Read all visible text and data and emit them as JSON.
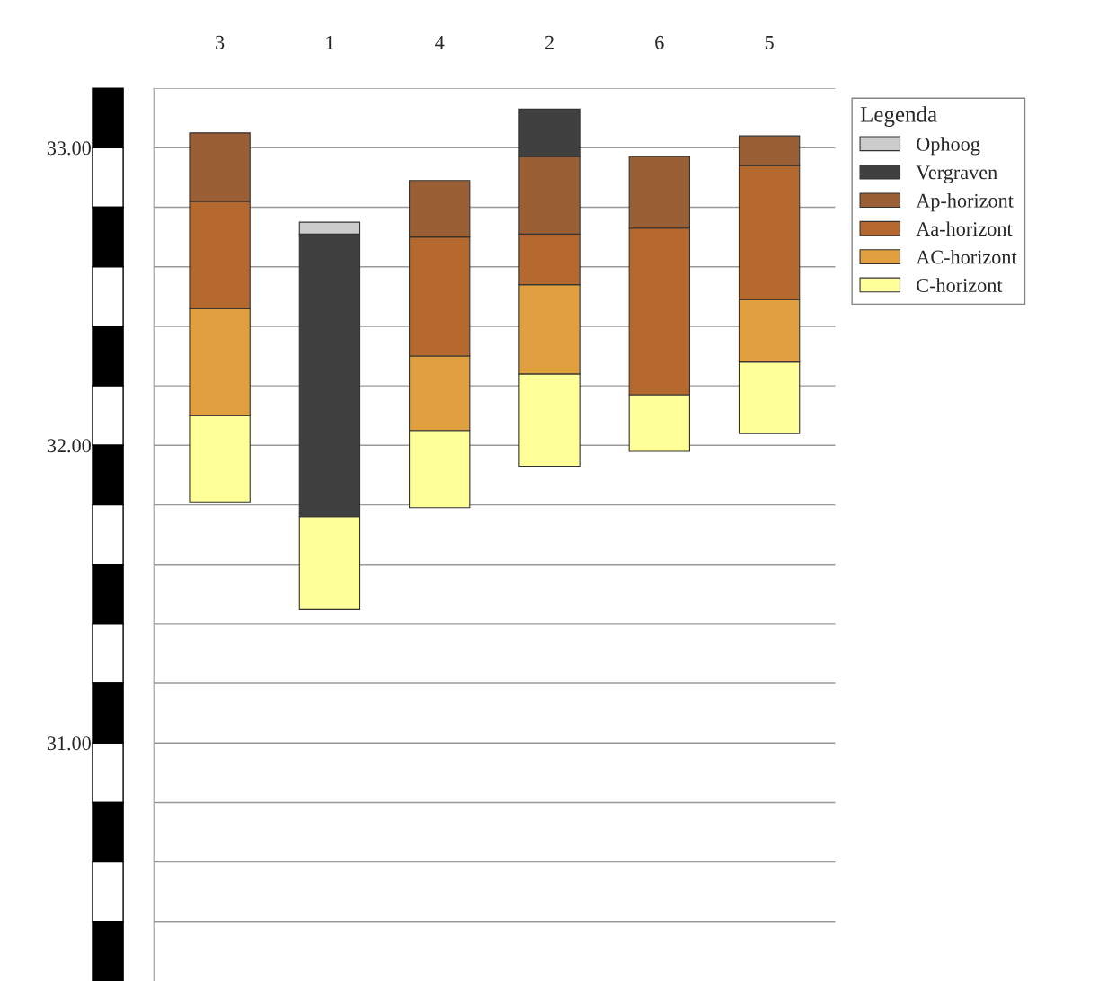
{
  "chart_data": {
    "type": "bar",
    "categories": [
      "3",
      "1",
      "4",
      "2",
      "6",
      "5"
    ],
    "series": [
      {
        "name": "C-horizont",
        "color": "#ffff99",
        "base": [
          31.81,
          31.45,
          31.79,
          31.93,
          31.98,
          32.04
        ],
        "values": [
          0.29,
          0.31,
          0.26,
          0.31,
          0.19,
          0.24
        ]
      },
      {
        "name": "AC-horizont",
        "color": "#e0a040",
        "base": [
          32.1,
          null,
          32.05,
          32.24,
          null,
          32.28
        ],
        "values": [
          0.36,
          null,
          0.25,
          0.3,
          null,
          0.21
        ]
      },
      {
        "name": "Aa-horizont",
        "color": "#b5692f",
        "base": [
          32.46,
          null,
          32.3,
          32.54,
          32.17,
          32.49
        ],
        "values": [
          0.36,
          null,
          0.4,
          0.17,
          0.56,
          0.45
        ]
      },
      {
        "name": "Ap-horizont",
        "color": "#9a5f35",
        "base": [
          32.82,
          null,
          32.7,
          32.71,
          32.73,
          32.94
        ],
        "values": [
          0.23,
          null,
          0.19,
          0.26,
          0.24,
          0.1
        ]
      },
      {
        "name": "Vergraven",
        "color": "#404040",
        "base": [
          null,
          31.76,
          null,
          32.97,
          null,
          null
        ],
        "values": [
          null,
          0.95,
          null,
          0.16,
          null,
          null
        ]
      },
      {
        "name": "Ophoog",
        "color": "#cccccc",
        "base": [
          null,
          32.71,
          null,
          null,
          null,
          null
        ],
        "values": [
          null,
          0.04,
          null,
          null,
          null,
          null
        ]
      }
    ],
    "ylim": [
      30.2,
      33.2
    ],
    "yticks": [
      {
        "value": 30.4,
        "label": null
      },
      {
        "value": 30.6,
        "label": null
      },
      {
        "value": 30.8,
        "label": null
      },
      {
        "value": 31.0,
        "label": "31.00"
      },
      {
        "value": 31.2,
        "label": null
      },
      {
        "value": 31.4,
        "label": null
      },
      {
        "value": 31.6,
        "label": null
      },
      {
        "value": 31.8,
        "label": null
      },
      {
        "value": 32.0,
        "label": "32.00"
      },
      {
        "value": 32.2,
        "label": null
      },
      {
        "value": 32.4,
        "label": null
      },
      {
        "value": 32.6,
        "label": null
      },
      {
        "value": 32.8,
        "label": null
      },
      {
        "value": 33.0,
        "label": "33.00"
      },
      {
        "value": 33.2,
        "label": null
      }
    ],
    "grid": "y",
    "legend": "top right",
    "legend_title": "Legenda"
  }
}
